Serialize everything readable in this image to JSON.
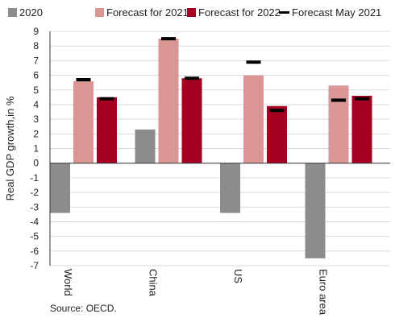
{
  "chart_data": {
    "type": "bar",
    "categories": [
      "World",
      "China",
      "US",
      "Euro area"
    ],
    "series": [
      {
        "name": "2020",
        "color": "#8c8c8c",
        "values": [
          -3.4,
          2.3,
          -3.4,
          -6.5
        ]
      },
      {
        "name": "Forecast for 2021",
        "color": "#d99694",
        "values": [
          5.6,
          8.5,
          6.0,
          5.3
        ]
      },
      {
        "name": "Forecast for 2022",
        "color": "#a50021",
        "values": [
          4.5,
          5.8,
          3.9,
          4.6
        ]
      }
    ],
    "marker_series": {
      "name": "Forecast May 2021",
      "color": "#000000",
      "values_2021": [
        5.7,
        8.5,
        6.9,
        4.3
      ],
      "values_2022": [
        4.4,
        5.8,
        3.6,
        4.4
      ]
    },
    "ylabel": "Real GDP growth,in %",
    "ylim": [
      -7,
      9
    ],
    "yticks": [
      -7,
      -6,
      -5,
      -4,
      -3,
      -2,
      -1,
      0,
      1,
      2,
      3,
      4,
      5,
      6,
      7,
      8,
      9
    ],
    "grid": true,
    "legend_position": "top",
    "source": "Source: OECD."
  }
}
